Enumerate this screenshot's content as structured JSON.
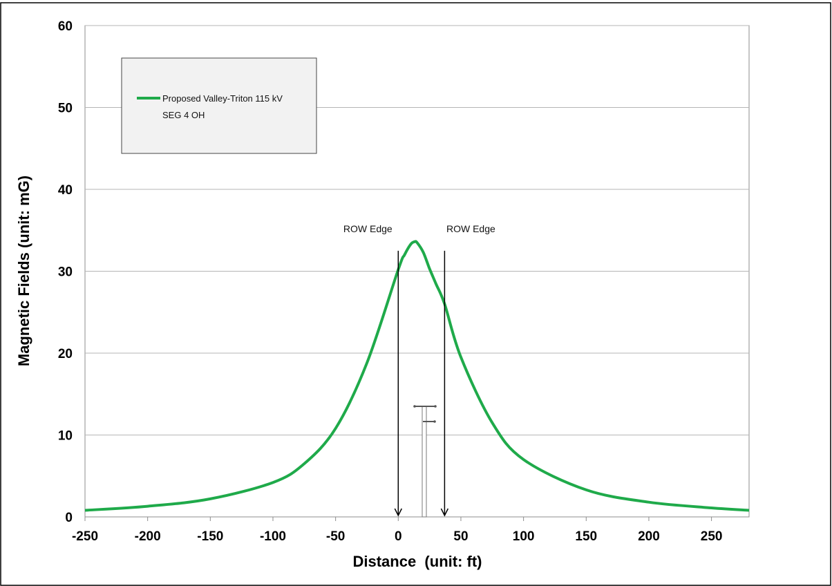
{
  "chart_data": {
    "type": "line",
    "title": "",
    "xlabel": "Distance  (unit: ft)",
    "ylabel": "Magnetic Fields (unit: mG)",
    "xlim": [
      -250,
      280
    ],
    "ylim": [
      0,
      60
    ],
    "xticks": [
      "-250",
      "-200",
      "-150",
      "-100",
      "-50",
      "0",
      "50",
      "100",
      "150",
      "200",
      "250"
    ],
    "xtick_values": [
      -250,
      -200,
      -150,
      -100,
      -50,
      0,
      50,
      100,
      150,
      200,
      250
    ],
    "yticks": [
      "0",
      "10",
      "20",
      "30",
      "40",
      "50",
      "60"
    ],
    "ytick_values": [
      0,
      10,
      20,
      30,
      40,
      50,
      60
    ],
    "grid": "horizontal",
    "legend": {
      "placement": "top-left",
      "entries": [
        "Proposed Valley-Triton 115 kV SEG 4 OH"
      ]
    },
    "legend_lines": [
      "Proposed Valley-Triton 115 kV",
      "SEG 4 OH"
    ],
    "series": [
      {
        "name": "Proposed Valley-Triton 115 kV SEG 4 OH",
        "color": "#1faa4a",
        "x": [
          -250,
          -200,
          -150,
          -100,
          -75,
          -50,
          -25,
          0,
          5,
          10,
          13,
          15,
          20,
          25,
          30,
          37,
          50,
          75,
          100,
          150,
          200,
          250,
          280
        ],
        "y": [
          0.8,
          1.3,
          2.2,
          4.2,
          6.5,
          10.8,
          18.8,
          30.2,
          32.0,
          33.3,
          33.6,
          33.5,
          32.3,
          30.3,
          28.5,
          26.0,
          19.5,
          11.5,
          7.0,
          3.3,
          1.8,
          1.1,
          0.8
        ]
      }
    ],
    "annotations": [
      {
        "text": "ROW Edge",
        "x": 0,
        "y_start": 32.5,
        "y_end": 0
      },
      {
        "text": "ROW Edge",
        "x": 37,
        "y_start": 32.5,
        "y_end": 0
      }
    ],
    "structure_icon": "transmission-tower-icon"
  }
}
